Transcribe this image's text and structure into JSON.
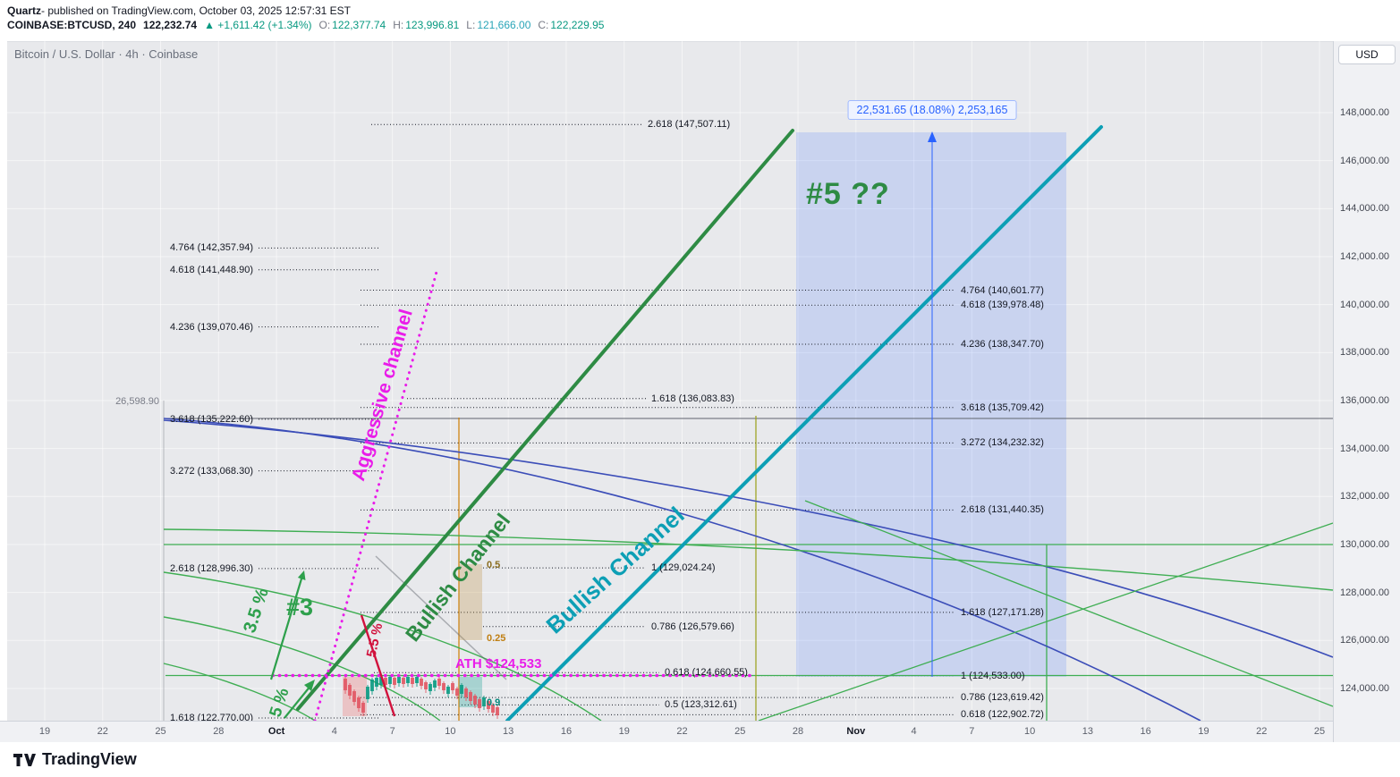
{
  "publish_bar": {
    "author": "Quartz",
    "rest": "- published on TradingView.com, October 03, 2025 12:57:31 EST"
  },
  "symbol_bar": {
    "symbol": "COINBASE:BTCUSD, 240",
    "price": "122,232.74",
    "change": "▲ +1,611.42 (+1.34%)",
    "o_label": "O:",
    "o": "122,377.74",
    "h_label": "H:",
    "h": "123,996.81",
    "l_label": "L:",
    "l": "121,666.00",
    "c_label": "C:",
    "c": "122,229.95"
  },
  "colors": {
    "up": "#089981",
    "down": "#e25562",
    "trend_green": "#2e8b44",
    "trend_teal": "#0d9fb5",
    "magenta": "#e91ce9",
    "region_blue": "#2962ff",
    "ann_green": "#2ea04c",
    "red": "#d1113c",
    "fib_line": "#131722"
  },
  "chart_data": {
    "type": "candlestick",
    "symbol": "COINBASE:BTCUSD",
    "interval_minutes": 240,
    "title": "Bitcoin / U.S. Dollar · 4h · Coinbase",
    "quote": {
      "last": 122232.74,
      "change_abs": 1611.42,
      "change_pct": 1.34,
      "open": 122377.74,
      "high": 123996.81,
      "low": 121666.0,
      "close": 122229.95,
      "currency": "USD"
    },
    "ath_price": 124533,
    "y_axis": {
      "label": "USD",
      "tick_step": 2000,
      "range_visible": [
        122650,
        151000
      ],
      "tick_labels": [
        "148,000.00",
        "146,000.00",
        "144,000.00",
        "142,000.00",
        "140,000.00",
        "138,000.00",
        "136,000.00",
        "134,000.00",
        "132,000.00",
        "130,000.00",
        "128,000.00",
        "126,000.00",
        "124,000.00"
      ]
    },
    "x_axis": {
      "ticks": [
        {
          "label": "19",
          "major": false
        },
        {
          "label": "22",
          "major": false
        },
        {
          "label": "25",
          "major": false
        },
        {
          "label": "28",
          "major": false
        },
        {
          "label": "Oct",
          "major": true
        },
        {
          "label": "4",
          "major": false
        },
        {
          "label": "7",
          "major": false
        },
        {
          "label": "10",
          "major": false
        },
        {
          "label": "13",
          "major": false
        },
        {
          "label": "16",
          "major": false
        },
        {
          "label": "19",
          "major": false
        },
        {
          "label": "22",
          "major": false
        },
        {
          "label": "25",
          "major": false
        },
        {
          "label": "28",
          "major": false
        },
        {
          "label": "Nov",
          "major": true
        },
        {
          "label": "4",
          "major": false
        },
        {
          "label": "7",
          "major": false
        },
        {
          "label": "10",
          "major": false
        },
        {
          "label": "13",
          "major": false
        },
        {
          "label": "16",
          "major": false
        },
        {
          "label": "19",
          "major": false
        },
        {
          "label": "22",
          "major": false
        },
        {
          "label": "25",
          "major": false
        }
      ]
    },
    "measurement": {
      "label": "22,531.65 (18.08%) 2,253,165",
      "price_delta": 22531.65,
      "price_delta_pct": 18.08,
      "volume": 2253165
    },
    "fib_extension_left": [
      {
        "text": "4.764 (142,357.94)",
        "price": 142357.94
      },
      {
        "text": "4.618 (141,448.90)",
        "price": 141448.9
      },
      {
        "text": "4.236 (139,070.46)",
        "price": 139070.46
      },
      {
        "text": "3.618 (135,222.60)",
        "price": 135222.6
      },
      {
        "text": "3.272 (133,068.30)",
        "price": 133068.3
      },
      {
        "text": "2.618 (128,996.30)",
        "price": 128996.3
      },
      {
        "text": "1.618 (122,770.00)",
        "price": 122770.0
      }
    ],
    "fib_projection_mid": [
      {
        "text": "2.618 (147,507.11)",
        "price": 147507.11
      },
      {
        "text": "1.618 (136,083.83)",
        "price": 136083.83
      },
      {
        "text": "1 (129,024.24)",
        "price": 129024.24
      },
      {
        "text": "0.786 (126,579.66)",
        "price": 126579.66
      },
      {
        "text": "0.618 (124,660.55)",
        "price": 124660.55
      },
      {
        "text": "0.5 (123,312.61)",
        "price": 123312.61
      }
    ],
    "fib_extension_right": [
      {
        "text": "4.764 (140,601.77)",
        "price": 140601.77
      },
      {
        "text": "4.618 (139,978.48)",
        "price": 139978.48
      },
      {
        "text": "4.236 (138,347.70)",
        "price": 138347.7
      },
      {
        "text": "3.618 (135,709.42)",
        "price": 135709.42
      },
      {
        "text": "3.272 (134,232.32)",
        "price": 134232.32
      },
      {
        "text": "2.618 (131,440.35)",
        "price": 131440.35
      },
      {
        "text": "1.618 (127,171.28)",
        "price": 127171.28
      },
      {
        "text": "1 (124,533.00)",
        "price": 124533.0
      },
      {
        "text": "0.786 (123,619.42)",
        "price": 123619.42
      },
      {
        "text": "0.618 (122,902.72)",
        "price": 122902.72
      }
    ],
    "annotations": {
      "aggressive_channel": "Aggressive channel",
      "bullish_channel_1": "Bullish Channel",
      "bullish_channel_2": "Bullish Channel",
      "wave_5": "#5 ??",
      "wave_3": "#3",
      "pct_3_5": "3.5 %",
      "pct_5_5": "5.5 %",
      "pct_5": "5 %",
      "ath_label": "ATH $124,533",
      "left_value": "26,598.90",
      "mini_0_5": "0.5",
      "mini_0_25": "0.25",
      "mini_0_9": "0.9"
    }
  },
  "footer": {
    "brand": "TradingView"
  }
}
